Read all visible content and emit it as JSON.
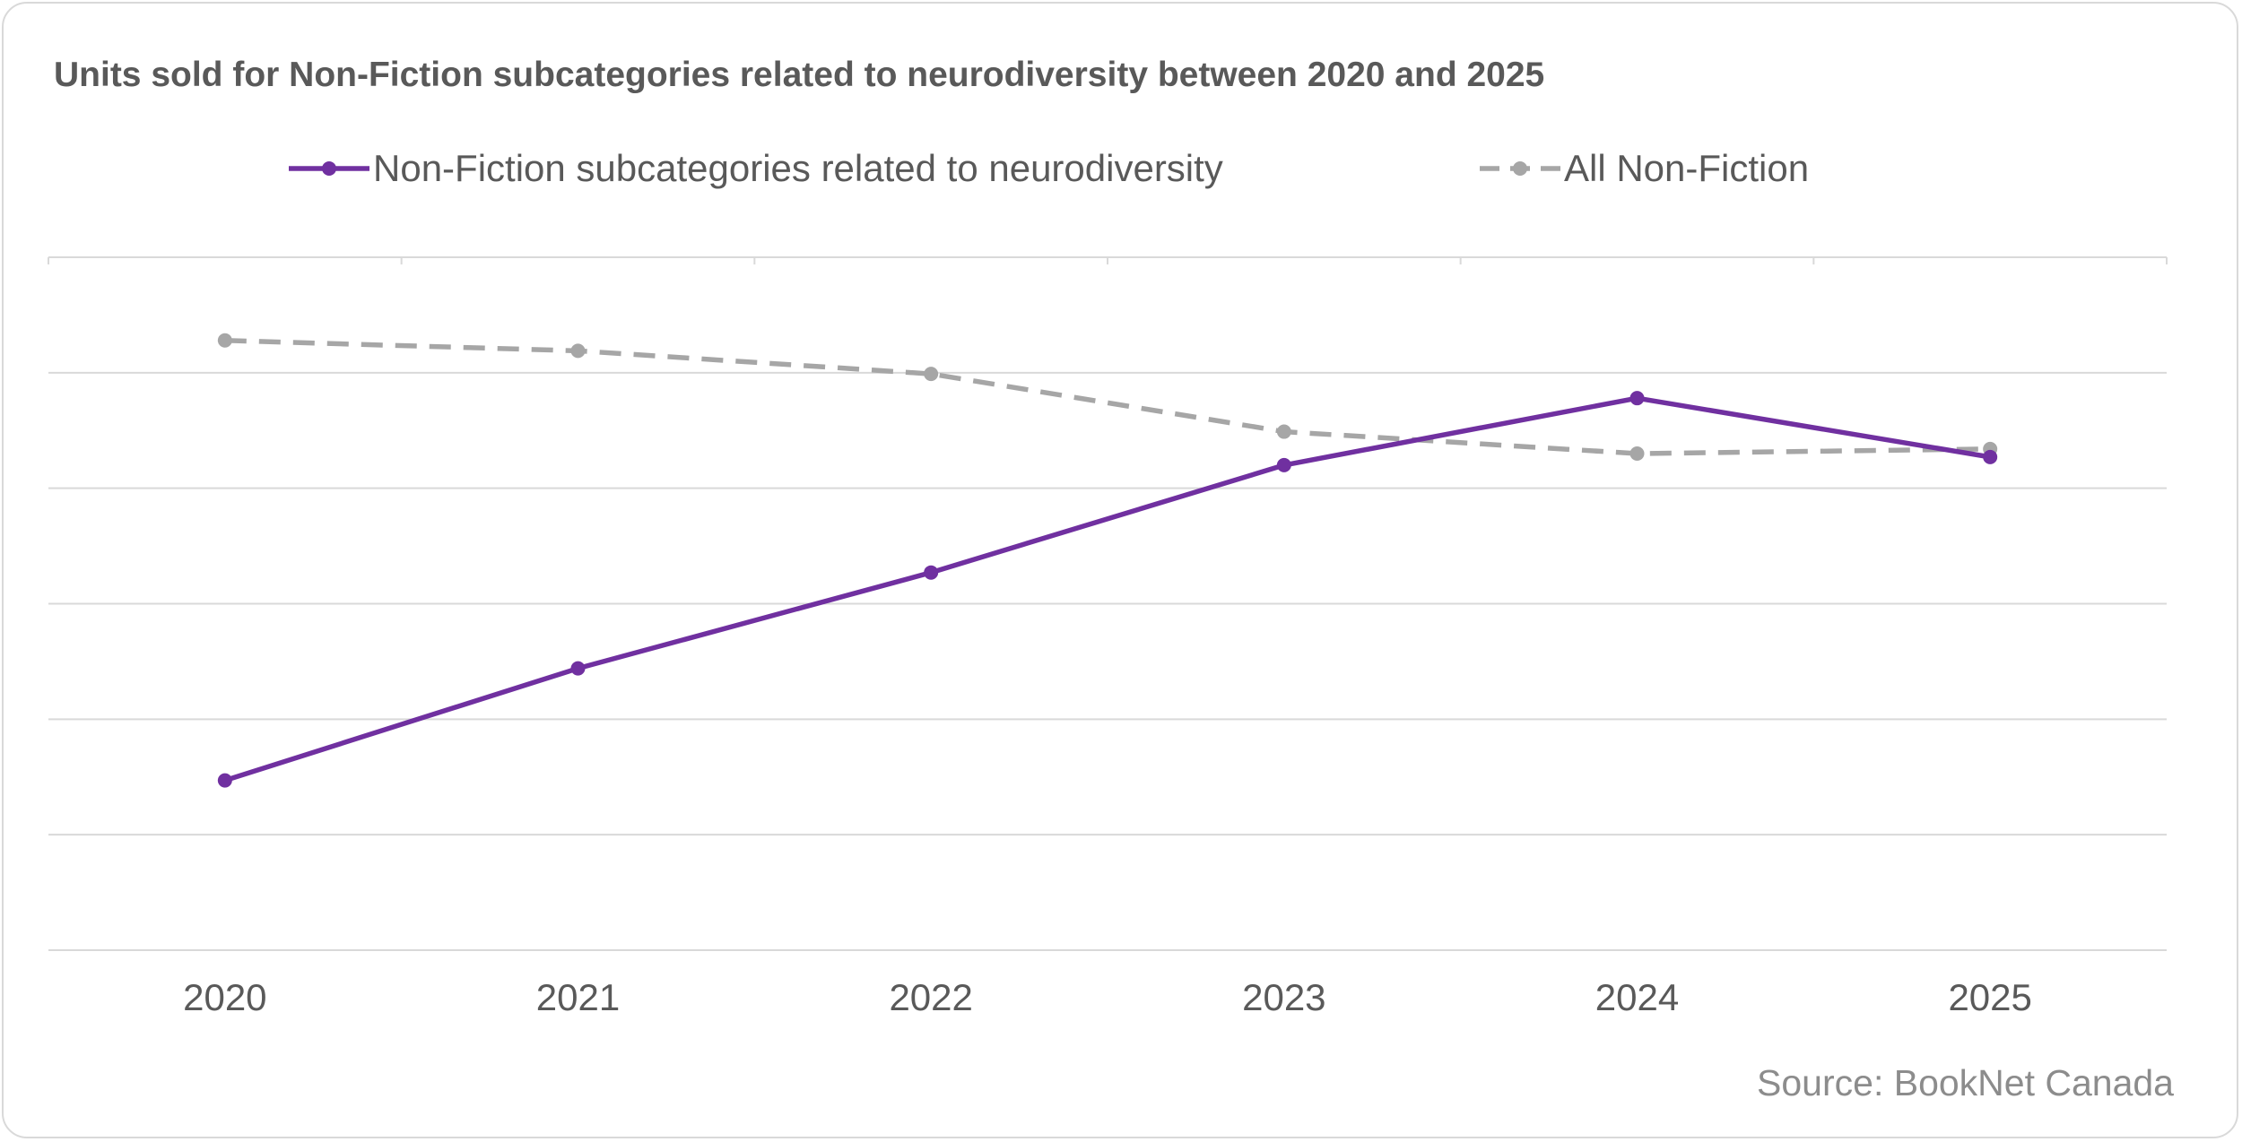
{
  "chart_data": {
    "type": "line",
    "title": "Units sold for Non-Fiction subcategories related to neurodiversity between 2020 and 2025",
    "categories": [
      "2020",
      "2021",
      "2022",
      "2023",
      "2024",
      "2025"
    ],
    "series": [
      {
        "name": "Non-Fiction subcategories related to neurodiversity",
        "values": [
          1.47,
          2.44,
          3.27,
          4.2,
          4.78,
          4.27
        ],
        "color": "#7030a0",
        "style": "solid"
      },
      {
        "name": "All Non-Fiction",
        "values": [
          5.28,
          5.19,
          4.99,
          4.49,
          4.3,
          4.34
        ],
        "color": "#a6a6a6",
        "style": "dashed"
      }
    ],
    "ylim": [
      0,
      6
    ],
    "y_tick_labels_shown": false,
    "grid": true,
    "legend_position": "top",
    "source": "Source: BookNet Canada"
  }
}
